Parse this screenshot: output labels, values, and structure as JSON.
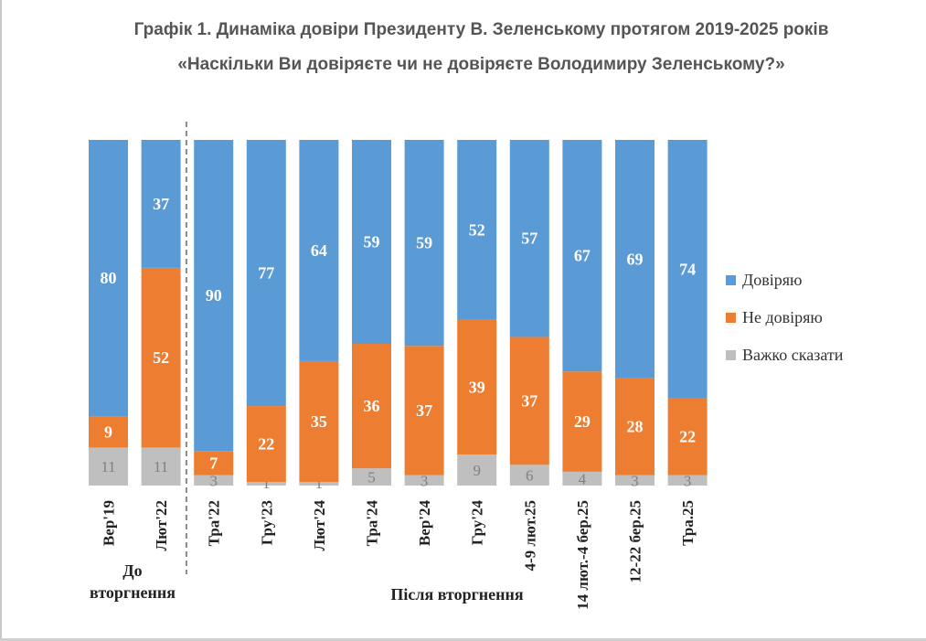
{
  "title_line1": "Графік 1. Динаміка довіри Президенту В. Зеленському протягом 2019-2025 років",
  "title_line2": "«Наскільки Ви довіряєте чи не довіряєте Володимиру Зеленському?»",
  "group_labels": {
    "before_line1": "До",
    "before_line2": "вторгнення",
    "after": "Після вторгнення"
  },
  "colors": {
    "trust": "#5B9BD5",
    "distrust": "#ED7D31",
    "hard": "#BFBFBF",
    "divider": "#888888"
  },
  "chart_data": {
    "type": "bar",
    "stacked": true,
    "normalized": "100%",
    "title": "Графік 1. Динаміка довіри Президенту В. Зеленському протягом 2019-2025 років",
    "subtitle": "«Наскільки Ви довіряєте чи не довіряєте Володимиру Зеленському?»",
    "categories": [
      "Вер'19",
      "Лют'22",
      "Тра'22",
      "Гру'23",
      "Лют'24",
      "Тра'24",
      "Вер'24",
      "Гру'24",
      "4-9 лют.25",
      "14 лют.-4 бер.25",
      "12-22 бер.25",
      "Тра.25"
    ],
    "series": [
      {
        "name": "Довіряю",
        "color": "#5B9BD5",
        "label_color": "#ffffff",
        "values": [
          80,
          37,
          90,
          77,
          64,
          59,
          59,
          52,
          57,
          67,
          69,
          74
        ]
      },
      {
        "name": "Не довіряю",
        "color": "#ED7D31",
        "label_color": "#ffffff",
        "values": [
          9,
          52,
          7,
          22,
          35,
          36,
          37,
          39,
          37,
          29,
          28,
          22
        ]
      },
      {
        "name": "Важко сказати",
        "color": "#BFBFBF",
        "label_color": "#808080",
        "values": [
          11,
          11,
          3,
          1,
          1,
          5,
          3,
          9,
          6,
          4,
          3,
          3
        ]
      }
    ],
    "legend": [
      "Довіряю",
      "Не довіряю",
      "Важко сказати"
    ],
    "legend_position": "right",
    "groups": [
      "До вторгнення",
      "Після вторгнення"
    ],
    "divider_after_category": "Лют'22",
    "xlabel": "",
    "ylabel": "",
    "grid": false
  }
}
